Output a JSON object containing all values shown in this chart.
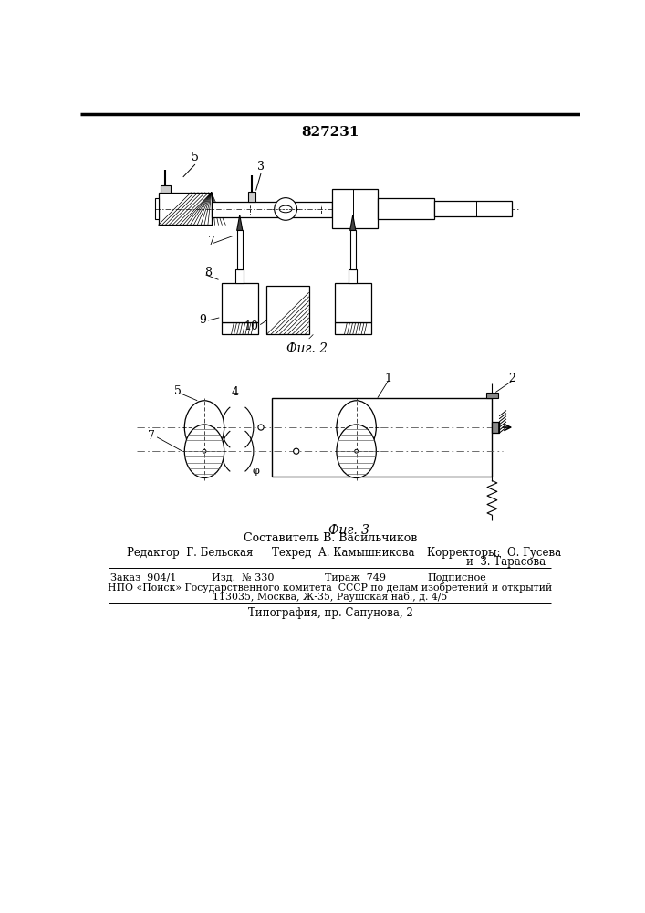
{
  "patent_number": "827231",
  "fig2_label": "Фиг. 2",
  "fig3_label": "Фиг. 3",
  "footer_composer": "Составитель В. Васильчиков",
  "footer_editor": "Редактор  Г. Бельская",
  "footer_tech": "Техред  А. Камышникова",
  "footer_correctors": "Корректоры:  О. Гусева",
  "footer_correctors2": "и  З. Тарасова",
  "footer_order": "Заказ  904/1",
  "footer_izd": "Изд.  № 330",
  "footer_tirazh": "Тираж  749",
  "footer_podpisnoe": "Подписное",
  "footer_npo": "НПО «Поиск» Государственного комитета  СССР по делам изобретений и открытий",
  "footer_address": "113035, Москва, Ж-35, Раушская наб., д. 4/5",
  "footer_typography": "Типография, пр. Сапунова, 2",
  "bg_color": "#ffffff",
  "line_color": "#000000",
  "text_color": "#000000"
}
